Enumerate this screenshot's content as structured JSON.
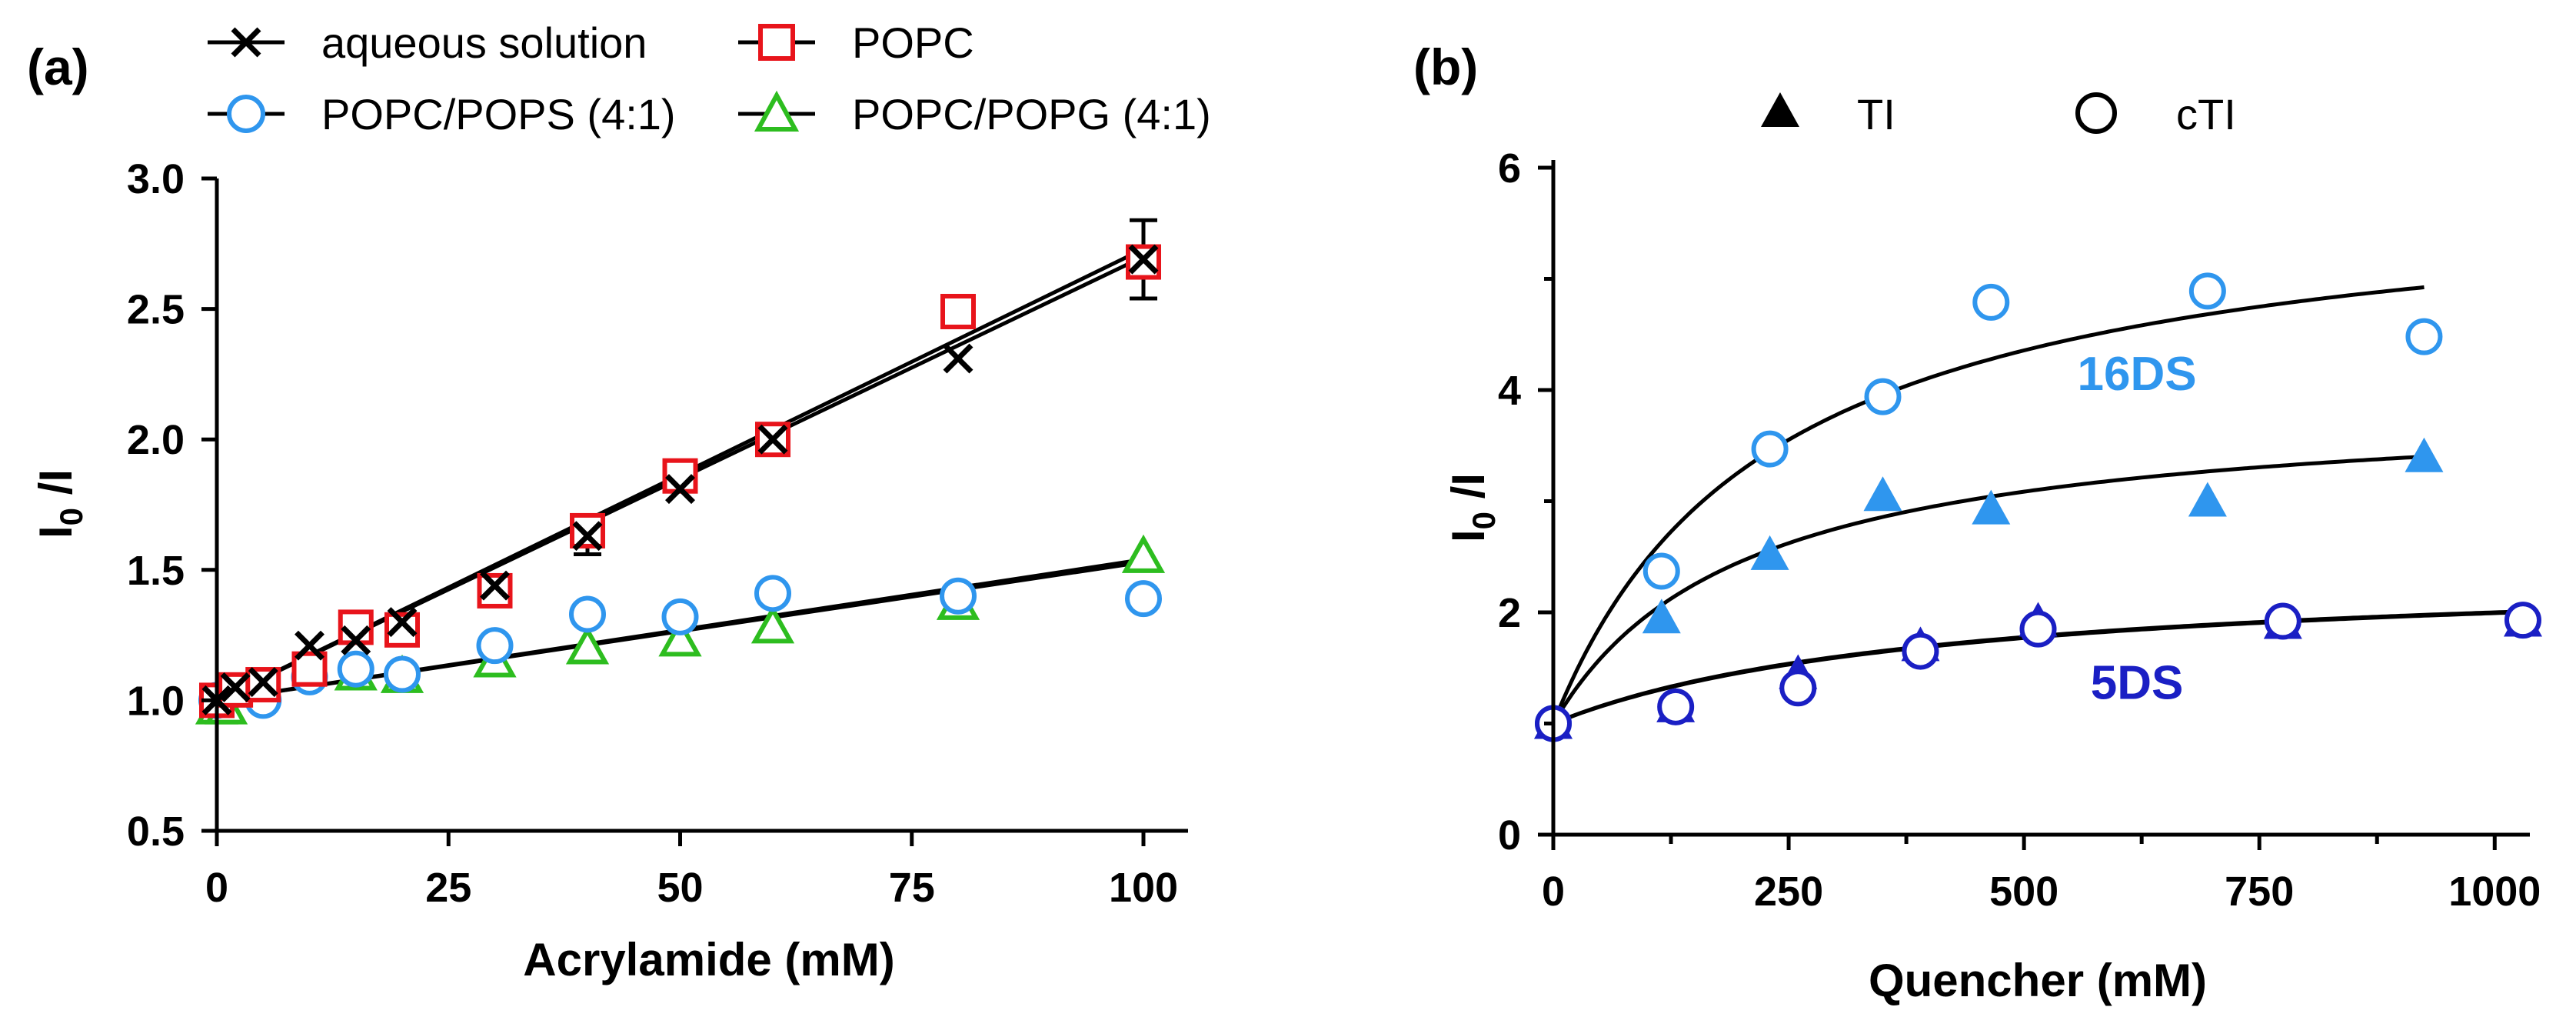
{
  "chart_data": [
    {
      "type": "scatter",
      "panel_label": "(a)",
      "xlabel": "Acrylamide (mM)",
      "ylabel_main": "I",
      "ylabel_sub": "0",
      "ylabel_tail": " /I",
      "xlim": [
        0,
        100
      ],
      "ylim": [
        0.5,
        3.0
      ],
      "x_ticks": [
        0,
        25,
        50,
        75,
        100
      ],
      "x_tick_labels": [
        "0",
        "25",
        "50",
        "75",
        "100"
      ],
      "y_ticks": [
        0.5,
        1.0,
        1.5,
        2.0,
        2.5,
        3.0
      ],
      "y_tick_labels": [
        "0.5",
        "1.0",
        "1.5",
        "2.0",
        "2.5",
        "3.0"
      ],
      "legend": {
        "placement": "top",
        "columns": 2
      },
      "series": [
        {
          "name": "aqueous solution",
          "marker": "x",
          "color": "#000000",
          "x": [
            0,
            2,
            5,
            10,
            15,
            20,
            30,
            40,
            50,
            60,
            80,
            100
          ],
          "y": [
            1.0,
            1.05,
            1.07,
            1.21,
            1.23,
            1.3,
            1.44,
            1.63,
            1.81,
            2.0,
            2.31,
            2.69
          ],
          "errors": [
            {
              "x": 30,
              "y": 1.44,
              "err": 0.04
            },
            {
              "x": 40,
              "y": 1.63,
              "err": 0.07
            },
            {
              "x": 100,
              "y": 2.69,
              "err": 0.15
            }
          ],
          "fit": {
            "slope": 0.017,
            "intercept": 1.0
          }
        },
        {
          "name": "POPC",
          "marker": "square",
          "color": "#e8141b",
          "x": [
            0,
            2,
            5,
            10,
            15,
            20,
            30,
            40,
            50,
            60,
            80,
            100
          ],
          "y": [
            1.0,
            1.04,
            1.06,
            1.12,
            1.28,
            1.27,
            1.42,
            1.65,
            1.86,
            2.0,
            2.49,
            2.68
          ],
          "fit": {
            "slope": 0.0173,
            "intercept": 1.0
          }
        },
        {
          "name": "POPC/POPS (4:1)",
          "marker": "circle",
          "color": "#2f96ee",
          "x": [
            0,
            5,
            10,
            15,
            20,
            30,
            40,
            50,
            60,
            80,
            100
          ],
          "y": [
            1.0,
            1.0,
            1.09,
            1.12,
            1.1,
            1.21,
            1.33,
            1.32,
            1.41,
            1.4,
            1.39
          ],
          "fit": {
            "slope": 0.0054,
            "intercept": 1.0
          }
        },
        {
          "name": "POPC/POPG (4:1)",
          "marker": "triangle-open",
          "color": "#2dbd1f",
          "x": [
            0,
            1,
            15,
            20,
            30,
            40,
            50,
            60,
            80,
            100
          ],
          "y": [
            0.97,
            0.97,
            1.1,
            1.09,
            1.15,
            1.2,
            1.23,
            1.28,
            1.37,
            1.55
          ],
          "fit": {
            "slope": 0.0053,
            "intercept": 1.0
          }
        }
      ]
    },
    {
      "type": "scatter",
      "panel_label": "(b)",
      "xlabel": "Quencher (mM)",
      "ylabel_main": "I",
      "ylabel_sub": "0",
      "ylabel_tail": " /I",
      "xlim": [
        0,
        1030
      ],
      "ylim": [
        0,
        6
      ],
      "x_ticks": [
        0,
        250,
        500,
        750,
        1000
      ],
      "x_tick_labels": [
        "0",
        "250",
        "500",
        "750",
        "1000"
      ],
      "x_minor_ticks": [
        125,
        375,
        625,
        875
      ],
      "y_ticks": [
        0,
        2,
        4,
        6
      ],
      "y_tick_labels": [
        "0",
        "2",
        "4",
        "6"
      ],
      "y_minor_ticks": [
        1,
        3,
        5
      ],
      "legend": {
        "placement": "top",
        "items": [
          {
            "label": "TI",
            "marker": "triangle-filled"
          },
          {
            "label": "cTI",
            "marker": "circle-open"
          }
        ]
      },
      "annotations": [
        {
          "text": "16DS",
          "x": 620,
          "y": 4.0,
          "color": "#2f96ee"
        },
        {
          "text": "5DS",
          "x": 620,
          "y": 1.22,
          "color": "#1a1fc4"
        }
      ],
      "series": [
        {
          "name": "16DS TI",
          "marker": "triangle-filled",
          "color": "#2f96ee",
          "x": [
            0,
            115,
            230,
            350,
            465,
            695,
            925
          ],
          "y": [
            1.0,
            1.95,
            2.52,
            3.05,
            2.93,
            3.0,
            3.4
          ],
          "fit": {
            "type": "hyperbolic",
            "a": 2.92,
            "k": 200,
            "xmax": 925
          }
        },
        {
          "name": "16DS cTI",
          "marker": "circle-open",
          "color": "#2f96ee",
          "x": [
            0,
            115,
            230,
            350,
            465,
            695,
            925
          ],
          "y": [
            1.0,
            2.37,
            3.47,
            3.94,
            4.79,
            4.89,
            4.48
          ],
          "fit": {
            "type": "hyperbolic",
            "a": 4.9,
            "k": 230,
            "xmax": 925
          }
        },
        {
          "name": "5DS TI",
          "marker": "triangle-filled",
          "color": "#1a1fc4",
          "x": [
            0,
            130,
            260,
            390,
            515,
            775,
            1030
          ],
          "y": [
            1.0,
            1.15,
            1.45,
            1.7,
            1.92,
            1.9,
            1.92
          ],
          "fit": {
            "type": "hyperbolic",
            "a": 1.4,
            "k": 400,
            "xmax": 1030
          }
        },
        {
          "name": "5DS cTI",
          "marker": "circle-open",
          "color": "#1a1fc4",
          "x": [
            0,
            130,
            260,
            390,
            515,
            775,
            1030
          ],
          "y": [
            1.0,
            1.15,
            1.32,
            1.65,
            1.85,
            1.92,
            1.93
          ],
          "fit": {
            "type": "hyperbolic",
            "a": 1.4,
            "k": 410,
            "xmax": 1030
          }
        }
      ]
    }
  ]
}
